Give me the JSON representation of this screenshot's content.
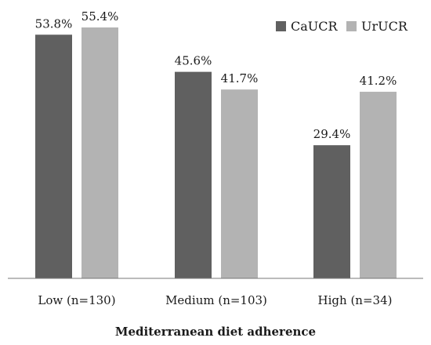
{
  "chart_data": {
    "type": "bar",
    "title": "",
    "xlabel": "Mediterranean diet adherence",
    "ylabel": "",
    "ylim": [
      0,
      58
    ],
    "grid": false,
    "legend_position": "top-right",
    "categories": [
      "Low (n=130)",
      "Medium (n=103)",
      "High (n=34)"
    ],
    "series": [
      {
        "name": "CaUCR",
        "color": "#606060",
        "values": [
          53.8,
          45.6,
          29.4
        ],
        "labels": [
          "53.8%",
          "45.6%",
          "29.4%"
        ]
      },
      {
        "name": "UrUCR",
        "color": "#b3b3b3",
        "values": [
          55.4,
          41.7,
          41.2
        ],
        "labels": [
          "55.4%",
          "41.7%",
          "41.2%"
        ]
      }
    ]
  }
}
